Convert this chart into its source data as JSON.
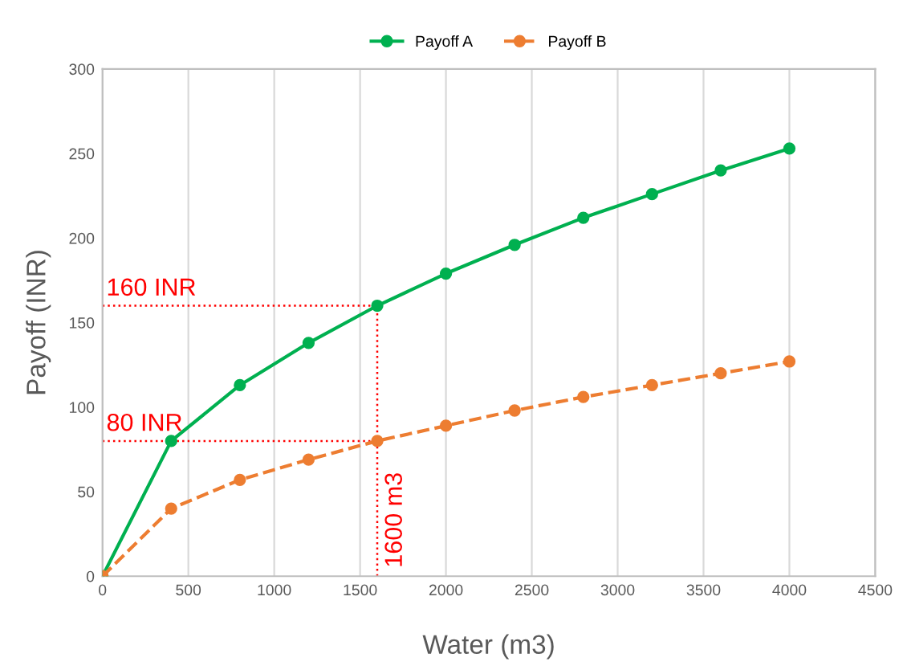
{
  "chart_data": {
    "type": "line",
    "xlabel": "Water (m3)",
    "ylabel": "Payoff (INR)",
    "x": [
      0,
      400,
      800,
      1200,
      1600,
      2000,
      2400,
      2800,
      3200,
      3600,
      4000
    ],
    "series": [
      {
        "name": "Payoff A",
        "color": "#00b050",
        "values": [
          0,
          80,
          113,
          138,
          160,
          179,
          196,
          212,
          226,
          240,
          253
        ],
        "line_style": "solid"
      },
      {
        "name": "Payoff B",
        "color": "#ed7d31",
        "values": [
          0,
          40,
          57,
          69,
          80,
          89,
          98,
          106,
          113,
          120,
          127
        ],
        "line_style": "dashed"
      }
    ],
    "xlim": [
      0,
      4500
    ],
    "xticks": [
      0,
      500,
      1000,
      1500,
      2000,
      2500,
      3000,
      3500,
      4000,
      4500
    ],
    "ylim": [
      0,
      300
    ],
    "yticks": [
      0,
      50,
      100,
      150,
      200,
      250,
      300
    ],
    "ref_lines": [
      {
        "axis": "y",
        "value": 160,
        "label": "160 INR",
        "color": "#ff0000",
        "line_style": "dotted"
      },
      {
        "axis": "y",
        "value": 80,
        "label": "80 INR",
        "color": "#ff0000",
        "line_style": "dotted"
      },
      {
        "axis": "x",
        "value": 1600,
        "label": "1600 m3",
        "color": "#ff0000",
        "line_style": "dotted"
      }
    ],
    "grid": "x",
    "legend": "top",
    "marker": "circle"
  }
}
